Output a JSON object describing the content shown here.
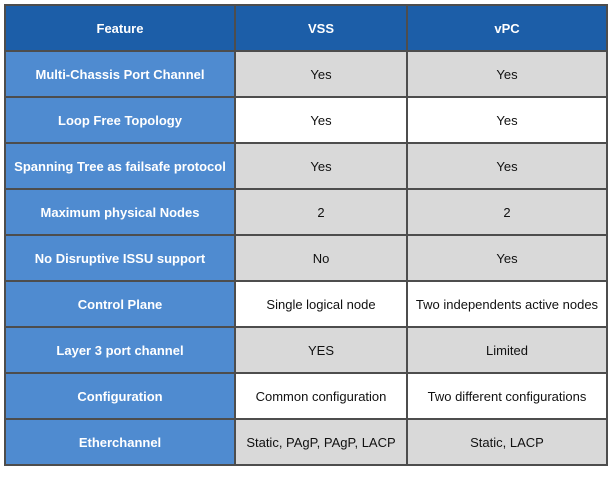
{
  "table": {
    "header": [
      "Feature",
      "VSS",
      "vPC"
    ],
    "rows": [
      [
        "Multi-Chassis Port Channel",
        "Yes",
        "Yes"
      ],
      [
        "Loop Free Topology",
        "Yes",
        "Yes"
      ],
      [
        "Spanning Tree as failsafe protocol",
        "Yes",
        "Yes"
      ],
      [
        "Maximum physical Nodes",
        "2",
        "2"
      ],
      [
        "No Disruptive ISSU support",
        "No",
        "Yes"
      ],
      [
        "Control Plane",
        "Single logical node",
        "Two independents active nodes"
      ],
      [
        "Layer 3 port channel",
        "YES",
        "Limited"
      ],
      [
        "Configuration",
        "Common configuration",
        "Two different configurations"
      ],
      [
        "Etherchannel",
        "Static, PAgP, PAgP, LACP",
        "Static, LACP"
      ]
    ]
  }
}
